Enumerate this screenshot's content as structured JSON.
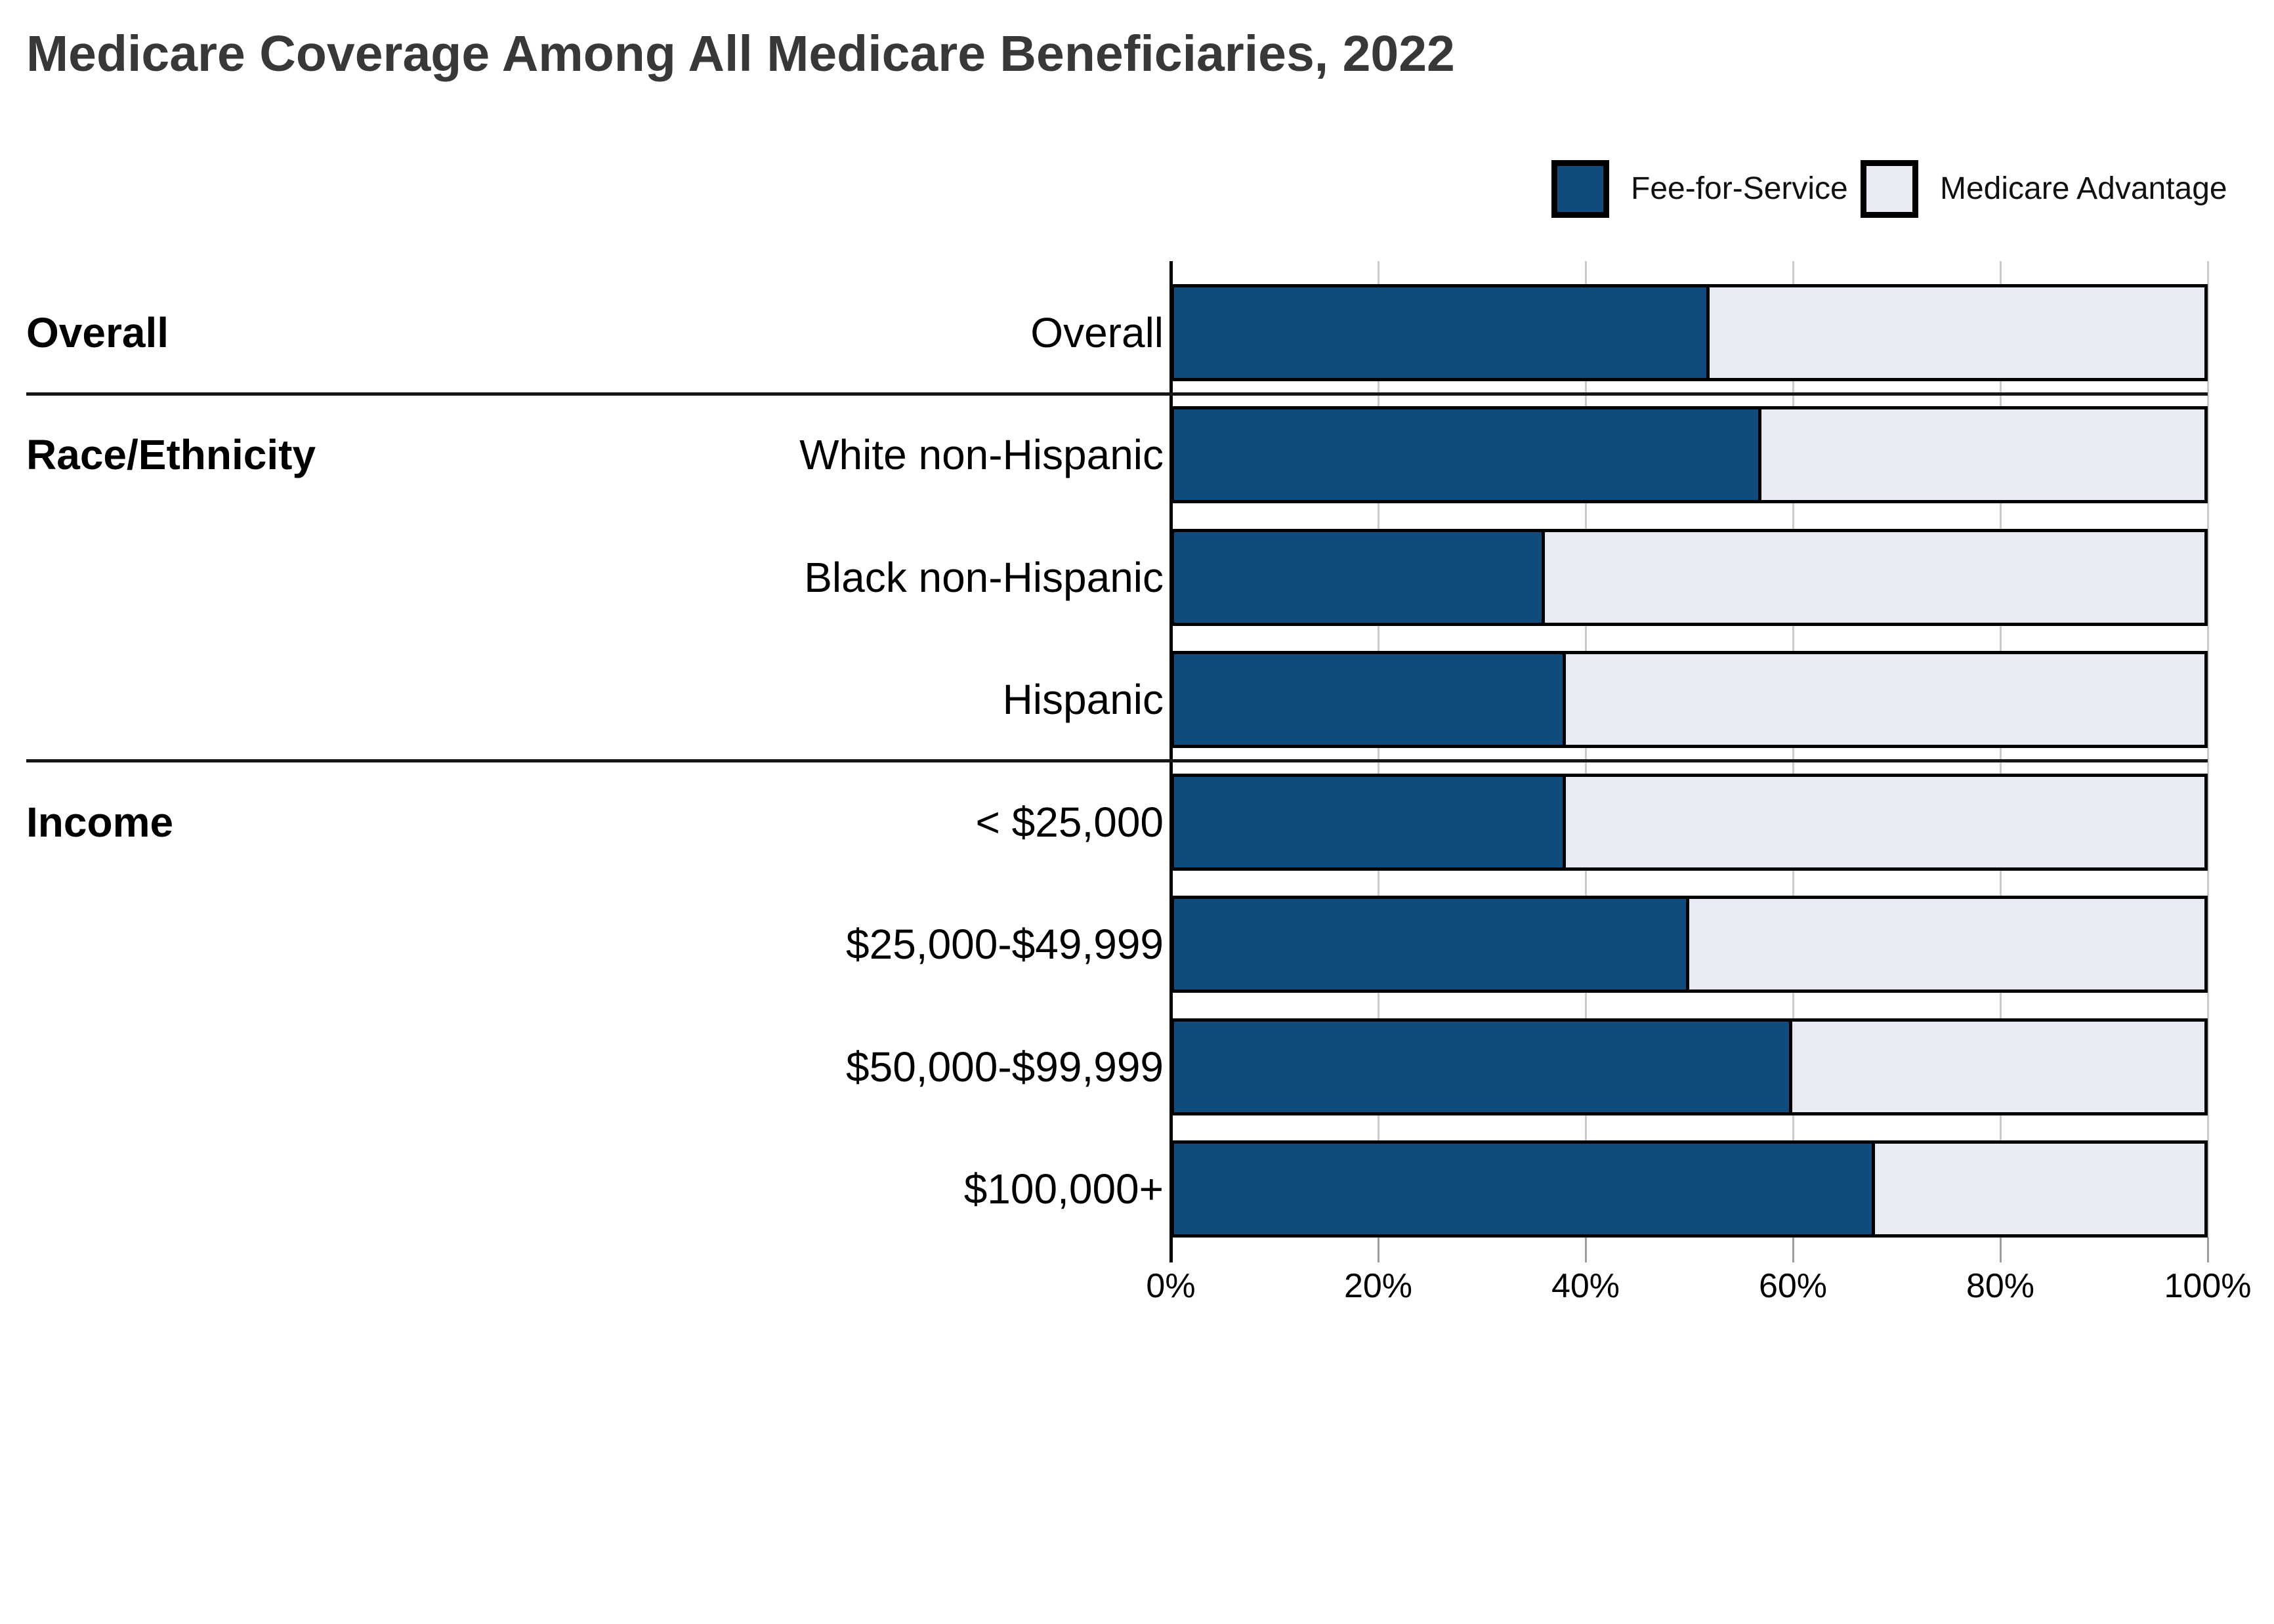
{
  "title": "Medicare Coverage Among All Medicare Beneficiaries, 2022",
  "colors": {
    "fee_for_service": "#114A7D",
    "medicare_advantage": "#E8EBF3",
    "bar_border": "#000000",
    "gridline": "#CBCBCB",
    "tick": "#9E9E9E",
    "axis": "#000000",
    "separator": "#161616",
    "title_text": "#383838",
    "label_text": "#000000",
    "background": "#FFFFFF"
  },
  "legend": {
    "position": "top-right",
    "items": [
      {
        "label": "Fee-for-Service",
        "color": "#114A7D"
      },
      {
        "label": "Medicare Advantage",
        "color": "#E8EBF3"
      }
    ]
  },
  "chart_data": {
    "type": "bar",
    "orientation": "horizontal",
    "stacked": true,
    "unit": "percent",
    "title": "Medicare Coverage Among All Medicare Beneficiaries, 2022",
    "categories": [
      "Overall",
      "White non-Hispanic",
      "Black non-Hispanic",
      "Hispanic",
      "< $25,000",
      "$25,000-$49,999",
      "$50,000-$99,999",
      "$100,000+"
    ],
    "series": [
      {
        "name": "Fee-for-Service",
        "color": "#114A7D",
        "values": [
          52,
          57,
          36,
          38,
          38,
          50,
          60,
          68
        ]
      },
      {
        "name": "Medicare Advantage",
        "color": "#E8EBF3",
        "values": [
          48,
          43,
          64,
          62,
          62,
          50,
          40,
          32
        ]
      }
    ],
    "sections": [
      {
        "label": "Overall",
        "rows": [
          0
        ]
      },
      {
        "label": "Race/Ethnicity",
        "rows": [
          1,
          2,
          3
        ]
      },
      {
        "label": "Income",
        "rows": [
          4,
          5,
          6,
          7
        ]
      }
    ],
    "x_ticks": {
      "labels": [
        "0%",
        "20%",
        "40%",
        "60%",
        "80%",
        "100%"
      ],
      "values": [
        0,
        20,
        40,
        60,
        80,
        100
      ]
    },
    "xlim": [
      0,
      100
    ],
    "grid": "vertical-only",
    "legend_position": "top-right"
  }
}
